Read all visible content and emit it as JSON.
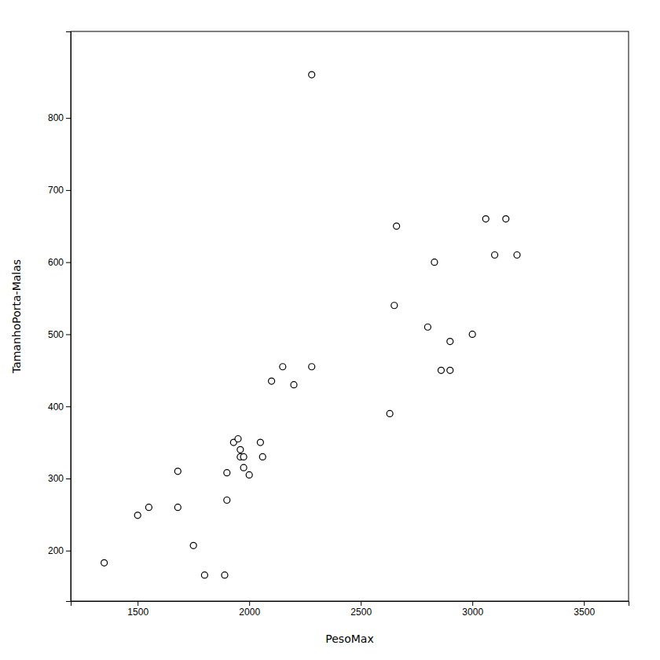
{
  "chart_data": {
    "type": "scatter",
    "x_label": "PesoMax",
    "y_label": "TamanhoPorta-Malas",
    "x": [
      1350,
      1500,
      1550,
      1680,
      1680,
      1750,
      1800,
      1890,
      1900,
      1900,
      1930,
      1950,
      1960,
      1960,
      1975,
      1975,
      2000,
      2050,
      2060,
      2100,
      2150,
      2200,
      2280,
      2280,
      2630,
      2650,
      2660,
      2800,
      2830,
      2860,
      2900,
      2900,
      3000,
      3060,
      3100,
      3150,
      3200
    ],
    "values": [
      183,
      249,
      260,
      260,
      310,
      207,
      166,
      166,
      308,
      270,
      350,
      355,
      340,
      330,
      330,
      315,
      305,
      350,
      330,
      435,
      455,
      430,
      455,
      860,
      390,
      540,
      650,
      510,
      600,
      450,
      450,
      490,
      500,
      660,
      610,
      660,
      610
    ],
    "xlim": [
      1200,
      3700
    ],
    "ylim": [
      130,
      920
    ],
    "xticks": [
      1500,
      2000,
      2500,
      3000,
      3500
    ],
    "yticks": [
      200,
      300,
      400,
      500,
      600,
      700,
      800
    ],
    "color": "black",
    "marker": "circle-open",
    "grid": false
  }
}
